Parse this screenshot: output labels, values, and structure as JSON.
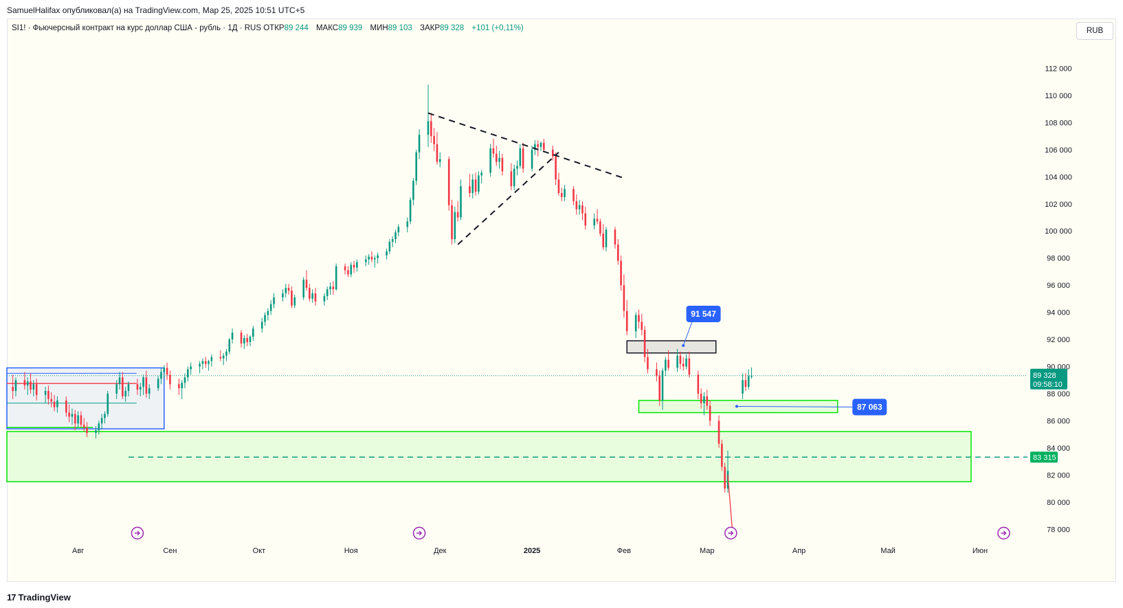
{
  "header": {
    "published_by": "SamuelHalifax опубликовал(а) на TradingView.com, Мар 25, 2025 10:51 UTC+5"
  },
  "legend": {
    "symbol": "SI1! · Фьючерсный контракт на курс доллар США - рубль · 1Д · RUS",
    "open_label": "ОТКР",
    "open_value": "89 244",
    "high_label": "МАКС",
    "high_value": "89 939",
    "low_label": "МИН",
    "low_value": "89 103",
    "close_label": "ЗАКР",
    "close_value": "89 328",
    "change": "+101 (+0,11%)"
  },
  "currency_button": "RUB",
  "footer": {
    "logo": "TradingView",
    "logo_mark": "17"
  },
  "colors": {
    "up": "#089981",
    "down": "#f23645",
    "zone_green": "#00e600",
    "zone_blue": "#2962ff",
    "label_blue": "#2962ff",
    "price_badge": "#089981",
    "target_badge": "#00b060"
  },
  "chart_data": {
    "type": "candlestick",
    "ylim": [
      77000,
      114000
    ],
    "y_ticks": [
      "112 000",
      "110 000",
      "108 000",
      "106 000",
      "104 000",
      "102 000",
      "100 000",
      "98 000",
      "96 000",
      "94 000",
      "92 000",
      "90 000",
      "88 000",
      "86 000",
      "84 000",
      "82 000",
      "80 000",
      "78 000"
    ],
    "y_tick_values": [
      112000,
      110000,
      108000,
      106000,
      104000,
      102000,
      100000,
      98000,
      96000,
      94000,
      92000,
      90000,
      88000,
      86000,
      84000,
      82000,
      80000,
      78000
    ],
    "x_ticks": [
      {
        "label": "Авг",
        "day": 0
      },
      {
        "label": "Сен",
        "day": 31
      },
      {
        "label": "Окт",
        "day": 61
      },
      {
        "label": "Ноя",
        "day": 92
      },
      {
        "label": "Дек",
        "day": 122
      },
      {
        "label": "2025",
        "day": 153,
        "bold": true
      },
      {
        "label": "Фев",
        "day": 184
      },
      {
        "label": "Мар",
        "day": 212
      },
      {
        "label": "Апр",
        "day": 243
      },
      {
        "label": "Май",
        "day": 273
      },
      {
        "label": "Июн",
        "day": 304
      }
    ],
    "x_range_days": [
      -24,
      320
    ],
    "candles": [
      [
        -22,
        88500,
        89400,
        87600,
        88200
      ],
      [
        -21,
        88200,
        89200,
        87800,
        89000
      ],
      [
        -18,
        89000,
        89600,
        88300,
        88600
      ],
      [
        -17,
        88600,
        89200,
        87900,
        88900
      ],
      [
        -16,
        88900,
        89500,
        88000,
        88300
      ],
      [
        -15,
        88300,
        89000,
        87800,
        88700
      ],
      [
        -14,
        88700,
        89100,
        87500,
        87900
      ],
      [
        -11,
        87900,
        88500,
        87300,
        88200
      ],
      [
        -10,
        88200,
        88600,
        87200,
        87600
      ],
      [
        -9,
        87600,
        88100,
        87000,
        87400
      ],
      [
        -8,
        87400,
        87900,
        86700,
        87000
      ],
      [
        -7,
        87000,
        87800,
        86600,
        87500
      ],
      [
        -4,
        87500,
        87800,
        86300,
        86600
      ],
      [
        -3,
        86600,
        87200,
        85900,
        86300
      ],
      [
        -2,
        86300,
        86900,
        85700,
        86500
      ],
      [
        -1,
        86500,
        86800,
        85300,
        85800
      ],
      [
        0,
        85800,
        86700,
        85500,
        86400
      ],
      [
        1,
        86400,
        86700,
        85500,
        85700
      ],
      [
        2,
        85700,
        86200,
        85200,
        85500
      ],
      [
        3,
        85500,
        85900,
        84800,
        85100
      ],
      [
        6,
        85100,
        85600,
        84700,
        85300
      ],
      [
        7,
        85300,
        86000,
        85000,
        85800
      ],
      [
        8,
        85800,
        86500,
        85400,
        86200
      ],
      [
        9,
        86200,
        86700,
        85800,
        86500
      ],
      [
        10,
        86500,
        88200,
        86300,
        88000
      ],
      [
        13,
        88000,
        89000,
        87600,
        88700
      ],
      [
        14,
        88700,
        89600,
        88300,
        89200
      ],
      [
        15,
        89200,
        89600,
        87600,
        87800
      ],
      [
        16,
        87800,
        88500,
        87400,
        88200
      ],
      [
        17,
        88200,
        88900,
        87800,
        88700
      ],
      [
        20,
        88700,
        89100,
        87900,
        88300
      ],
      [
        21,
        88300,
        88800,
        87800,
        88500
      ],
      [
        22,
        88500,
        89400,
        87900,
        89200
      ],
      [
        23,
        89200,
        89700,
        87700,
        88000
      ],
      [
        24,
        88000,
        88700,
        87600,
        88400
      ],
      [
        27,
        88400,
        89300,
        88200,
        89100
      ],
      [
        28,
        89100,
        89900,
        88700,
        89600
      ],
      [
        29,
        89600,
        90100,
        89100,
        89900
      ],
      [
        30,
        89900,
        90300,
        89000,
        89400
      ],
      [
        31,
        89400,
        89700,
        88300,
        88700
      ],
      [
        34,
        88700,
        89100,
        87900,
        88400
      ],
      [
        35,
        88400,
        89000,
        87600,
        88800
      ],
      [
        36,
        88800,
        89500,
        88400,
        89200
      ],
      [
        37,
        89200,
        90000,
        88900,
        89800
      ],
      [
        38,
        89800,
        90300,
        89400,
        90000
      ],
      [
        41,
        90000,
        90400,
        89500,
        90200
      ],
      [
        42,
        90200,
        90600,
        89800,
        90400
      ],
      [
        43,
        90400,
        90700,
        89900,
        90200
      ],
      [
        44,
        90200,
        90500,
        89700,
        90400
      ],
      [
        45,
        90400,
        90900,
        90000,
        90700
      ],
      [
        48,
        90700,
        91200,
        90400,
        90600
      ],
      [
        49,
        90600,
        91000,
        90100,
        90800
      ],
      [
        50,
        90800,
        91300,
        90400,
        91100
      ],
      [
        51,
        91100,
        92100,
        90900,
        92000
      ],
      [
        52,
        92000,
        92800,
        91700,
        92500
      ],
      [
        55,
        92500,
        92700,
        91400,
        91700
      ],
      [
        56,
        91700,
        92300,
        91300,
        92100
      ],
      [
        57,
        92100,
        92400,
        91500,
        91800
      ],
      [
        58,
        91800,
        92300,
        91500,
        92200
      ],
      [
        59,
        92200,
        93000,
        91900,
        92800
      ],
      [
        62,
        92800,
        93600,
        92500,
        93300
      ],
      [
        63,
        93300,
        94000,
        93000,
        93800
      ],
      [
        64,
        93800,
        94300,
        93400,
        94100
      ],
      [
        65,
        94100,
        94900,
        93800,
        94600
      ],
      [
        66,
        94600,
        95400,
        94300,
        95100
      ],
      [
        69,
        95100,
        95700,
        94800,
        95400
      ],
      [
        70,
        95400,
        96100,
        95100,
        95800
      ],
      [
        71,
        95800,
        96100,
        95300,
        95600
      ],
      [
        72,
        95600,
        95900,
        94300,
        94500
      ],
      [
        73,
        94500,
        95300,
        94300,
        95100
      ],
      [
        76,
        95100,
        96600,
        94900,
        96400
      ],
      [
        77,
        96400,
        97100,
        95600,
        95800
      ],
      [
        78,
        95800,
        96100,
        94800,
        95000
      ],
      [
        79,
        95000,
        95700,
        94700,
        95400
      ],
      [
        80,
        95400,
        95800,
        94500,
        94800
      ],
      [
        83,
        94800,
        95400,
        94500,
        95200
      ],
      [
        84,
        95200,
        95900,
        94900,
        95700
      ],
      [
        85,
        95700,
        96200,
        95300,
        95900
      ],
      [
        86,
        95900,
        96300,
        95300,
        95700
      ],
      [
        87,
        95700,
        97600,
        95600,
        97400
      ],
      [
        90,
        97400,
        97600,
        96800,
        97100
      ],
      [
        91,
        97100,
        97400,
        96600,
        96800
      ],
      [
        92,
        96800,
        97700,
        96600,
        97500
      ],
      [
        93,
        97500,
        97800,
        96900,
        97300
      ],
      [
        94,
        97300,
        97900,
        97000,
        97700
      ],
      [
        97,
        97700,
        98200,
        97400,
        97900
      ],
      [
        98,
        97900,
        98300,
        97500,
        98100
      ],
      [
        99,
        98100,
        98500,
        97700,
        97900
      ],
      [
        100,
        97900,
        98200,
        97300,
        98000
      ],
      [
        101,
        98000,
        98400,
        97600,
        98200
      ],
      [
        104,
        98200,
        98700,
        97900,
        98500
      ],
      [
        105,
        98500,
        99400,
        98300,
        99200
      ],
      [
        106,
        99200,
        99600,
        98800,
        99400
      ],
      [
        107,
        99400,
        100100,
        99100,
        99900
      ],
      [
        108,
        99900,
        100500,
        99600,
        100300
      ],
      [
        111,
        100300,
        101000,
        99900,
        100700
      ],
      [
        112,
        100700,
        102500,
        100500,
        102300
      ],
      [
        113,
        102300,
        103900,
        101900,
        103700
      ],
      [
        114,
        103700,
        106000,
        103400,
        105800
      ],
      [
        115,
        105800,
        107500,
        105300,
        107100
      ],
      [
        118,
        107100,
        110800,
        106200,
        108100
      ],
      [
        119,
        108100,
        108700,
        106500,
        107000
      ],
      [
        120,
        107000,
        107600,
        105900,
        106400
      ],
      [
        121,
        106400,
        107300,
        104900,
        105100
      ],
      [
        122,
        105100,
        105800,
        104700,
        105300
      ],
      [
        125,
        105300,
        105500,
        101500,
        101900
      ],
      [
        126,
        101900,
        102300,
        99000,
        99400
      ],
      [
        127,
        99400,
        101800,
        99100,
        101400
      ],
      [
        128,
        101400,
        102200,
        100700,
        101000
      ],
      [
        129,
        101000,
        103800,
        100800,
        103300
      ],
      [
        132,
        103300,
        104200,
        102500,
        102800
      ],
      [
        133,
        102800,
        104200,
        102400,
        103800
      ],
      [
        134,
        103800,
        104300,
        102600,
        102900
      ],
      [
        135,
        102900,
        104400,
        102700,
        104100
      ],
      [
        136,
        104100,
        104500,
        103500,
        104300
      ],
      [
        139,
        104300,
        106400,
        104000,
        106100
      ],
      [
        140,
        106100,
        106800,
        105400,
        105700
      ],
      [
        141,
        105700,
        106300,
        104800,
        105100
      ],
      [
        142,
        105100,
        105900,
        104600,
        105400
      ],
      [
        143,
        105400,
        105700,
        104100,
        104400
      ],
      [
        146,
        104400,
        105000,
        103000,
        103300
      ],
      [
        147,
        103300,
        104900,
        103000,
        104600
      ],
      [
        148,
        104600,
        105200,
        104100,
        104800
      ],
      [
        149,
        104800,
        106400,
        104600,
        106100
      ],
      [
        150,
        106100,
        106500,
        104300,
        104600
      ],
      [
        153,
        104600,
        106300,
        104400,
        106000
      ],
      [
        154,
        106000,
        106700,
        105600,
        106400
      ],
      [
        155,
        106400,
        106700,
        105500,
        106200
      ],
      [
        156,
        106200,
        106600,
        105900,
        106500
      ],
      [
        157,
        106500,
        106800,
        105800,
        106000
      ],
      [
        160,
        106000,
        106300,
        105200,
        105500
      ],
      [
        161,
        105500,
        105800,
        103400,
        103800
      ],
      [
        162,
        103800,
        104300,
        102600,
        102800
      ],
      [
        163,
        102800,
        103200,
        102200,
        102500
      ],
      [
        164,
        102500,
        103400,
        102200,
        103100
      ],
      [
        167,
        103100,
        103300,
        101900,
        102200
      ],
      [
        168,
        102200,
        102700,
        101200,
        101600
      ],
      [
        169,
        101600,
        102300,
        101200,
        101900
      ],
      [
        170,
        101900,
        102200,
        100800,
        101300
      ],
      [
        171,
        101300,
        101800,
        100100,
        100400
      ],
      [
        174,
        100400,
        101300,
        100100,
        100900
      ],
      [
        175,
        100900,
        101600,
        100500,
        100700
      ],
      [
        176,
        100700,
        100900,
        99600,
        99800
      ],
      [
        177,
        99800,
        100500,
        98600,
        98800
      ],
      [
        178,
        98800,
        100300,
        98500,
        100100
      ],
      [
        181,
        100100,
        100300,
        98700,
        99000
      ],
      [
        182,
        99000,
        99400,
        97500,
        97800
      ],
      [
        183,
        97800,
        98200,
        95600,
        96000
      ],
      [
        184,
        96000,
        96800,
        93600,
        94100
      ],
      [
        185,
        94100,
        94900,
        92300,
        92600
      ],
      [
        188,
        92600,
        94000,
        92100,
        93800
      ],
      [
        189,
        93800,
        94200,
        92800,
        93300
      ],
      [
        190,
        93300,
        93900,
        92300,
        92700
      ],
      [
        191,
        92700,
        93000,
        90300,
        90700
      ],
      [
        192,
        90700,
        91300,
        89500,
        89800
      ],
      [
        195,
        89800,
        90300,
        88900,
        89300
      ],
      [
        196,
        89300,
        89700,
        87100,
        87500
      ],
      [
        197,
        87500,
        89900,
        86800,
        89700
      ],
      [
        198,
        89700,
        90700,
        89300,
        90500
      ],
      [
        199,
        90500,
        91200,
        89700,
        89900
      ],
      [
        202,
        89900,
        91300,
        89600,
        90800
      ],
      [
        203,
        90800,
        91100,
        89800,
        90200
      ],
      [
        204,
        90200,
        90700,
        89700,
        90000
      ],
      [
        205,
        90000,
        90900,
        89800,
        90600
      ],
      [
        206,
        90600,
        91100,
        89200,
        89400
      ],
      [
        209,
        89400,
        89700,
        87600,
        88000
      ],
      [
        210,
        88000,
        88400,
        86900,
        87300
      ],
      [
        211,
        87300,
        88100,
        86400,
        87800
      ],
      [
        212,
        87800,
        88300,
        86800,
        87100
      ],
      [
        213,
        87100,
        87500,
        85600,
        86000
      ],
      [
        216,
        86000,
        86400,
        84000,
        84300
      ],
      [
        217,
        84300,
        84600,
        82300,
        82600
      ],
      [
        218,
        82600,
        82900,
        80700,
        81000
      ],
      [
        219,
        81000,
        83800,
        80700,
        82300
      ],
      [
        224,
        88000,
        89500,
        87600,
        89000
      ],
      [
        225,
        89000,
        89500,
        88200,
        88500
      ],
      [
        226,
        88500,
        89800,
        88300,
        89300
      ],
      [
        227,
        89244,
        89939,
        89103,
        89328
      ]
    ],
    "trendlines": [
      {
        "from": [
          118,
          108700
        ],
        "to": [
          184,
          103900
        ],
        "style": "dashed"
      },
      {
        "from": [
          128,
          99000
        ],
        "to": [
          162,
          105800
        ],
        "style": "dashed"
      }
    ],
    "zones": [
      {
        "name": "resistance-zone",
        "from": [
          185,
          91900
        ],
        "to": [
          215,
          91000
        ],
        "color": "#c8c8c8"
      },
      {
        "name": "support-zone",
        "from": [
          189,
          87500
        ],
        "to": [
          256,
          86600
        ],
        "color": "#00e600"
      },
      {
        "name": "target-zone",
        "from": [
          -24,
          85200
        ],
        "to": [
          301,
          81500
        ],
        "color": "#00e600"
      },
      {
        "name": "range-box",
        "from": [
          -24,
          89900
        ],
        "to": [
          29,
          85400
        ],
        "color": "#2962ff"
      }
    ],
    "price_lines": [
      {
        "name": "current-price",
        "value": 89328,
        "style": "dotted",
        "color": "#089981"
      },
      {
        "name": "target-level",
        "value": 83315,
        "style": "dashed",
        "color": "#089981"
      }
    ],
    "annotations": [
      {
        "text": "91 547",
        "value": 91547
      },
      {
        "text": "87 063",
        "value": 87063
      }
    ],
    "badges": {
      "price": "89 328",
      "countdown": "09:58:10",
      "target": "83 315"
    }
  }
}
